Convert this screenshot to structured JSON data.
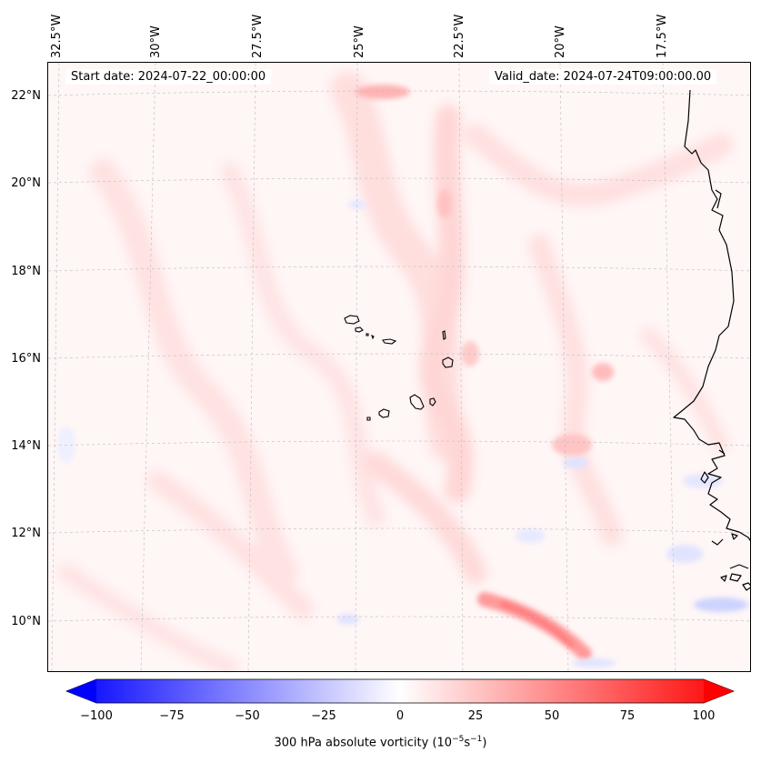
{
  "map": {
    "start_date": "Start date: 2024-07-22_00:00:00",
    "valid_date": "Valid_date: 2024-07-24T09:00:00.00",
    "longitude_labels": [
      "32.5°W",
      "30°W",
      "27.5°W",
      "25°W",
      "22.5°W",
      "20°W",
      "17.5°W"
    ],
    "latitude_labels": [
      "22°N",
      "20°N",
      "18°N",
      "16°N",
      "14°N",
      "12°N",
      "10°N"
    ],
    "features": [
      "Cape Verde islands",
      "West African coastline"
    ]
  },
  "colorbar": {
    "ticks": [
      "−100",
      "−75",
      "−50",
      "−25",
      "0",
      "25",
      "50",
      "75",
      "100"
    ],
    "label_main": "300 hPa absolute vorticity (10",
    "label_exp1": "−5",
    "label_mid": "s",
    "label_exp2": "−1",
    "label_end": ")",
    "min_color": "#0000ff",
    "mid_color": "#ffffff",
    "max_color": "#ff0000"
  }
}
